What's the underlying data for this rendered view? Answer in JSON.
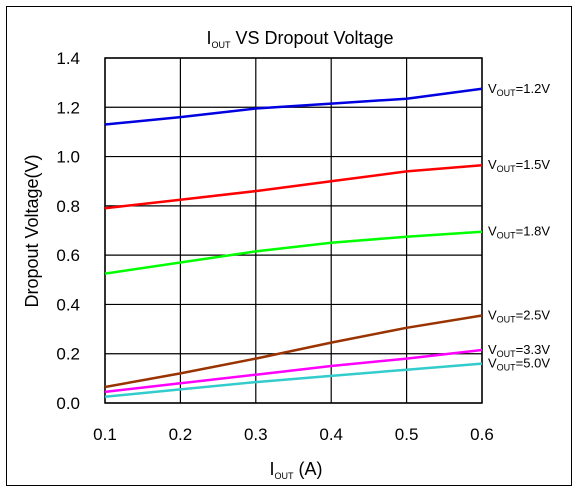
{
  "chart_data": {
    "type": "line",
    "title_main": "I",
    "title_sub": "OUT",
    "title_rest": " VS Dropout Voltage",
    "xlabel_main": "I",
    "xlabel_sub": "OUT",
    "xlabel_rest": " (A)",
    "ylabel": "Dropout Voltage(V)",
    "xlim": [
      0.1,
      0.6
    ],
    "ylim": [
      0.0,
      1.4
    ],
    "x_ticks": [
      "0.1",
      "0.2",
      "0.3",
      "0.4",
      "0.5",
      "0.6"
    ],
    "y_ticks": [
      "0.0",
      "0.2",
      "0.4",
      "0.6",
      "0.8",
      "1.0",
      "1.2",
      "1.4"
    ],
    "grid": true,
    "legend": "right",
    "x": [
      0.1,
      0.2,
      0.3,
      0.4,
      0.5,
      0.6
    ],
    "series": [
      {
        "name_main": "V",
        "name_sub": "OUT",
        "name_rest": "=1.2V",
        "color": "#0000e0",
        "values": [
          1.13,
          1.16,
          1.195,
          1.215,
          1.235,
          1.275
        ]
      },
      {
        "name_main": "V",
        "name_sub": "OUT",
        "name_rest": "=1.5V",
        "color": "#ff0000",
        "values": [
          0.79,
          0.825,
          0.86,
          0.9,
          0.94,
          0.965
        ]
      },
      {
        "name_main": "V",
        "name_sub": "OUT",
        "name_rest": "=1.8V",
        "color": "#00ff00",
        "values": [
          0.525,
          0.57,
          0.615,
          0.65,
          0.675,
          0.695
        ]
      },
      {
        "name_main": "V",
        "name_sub": "OUT",
        "name_rest": "=2.5V",
        "color": "#993300",
        "values": [
          0.065,
          0.12,
          0.18,
          0.245,
          0.305,
          0.355
        ]
      },
      {
        "name_main": "V",
        "name_sub": "OUT",
        "name_rest": "=3.3V",
        "color": "#ff00ff",
        "values": [
          0.045,
          0.08,
          0.115,
          0.15,
          0.18,
          0.215
        ]
      },
      {
        "name_main": "V",
        "name_sub": "OUT",
        "name_rest": "=5.0V",
        "color": "#33cccc",
        "values": [
          0.025,
          0.055,
          0.085,
          0.11,
          0.135,
          0.16
        ]
      }
    ]
  }
}
